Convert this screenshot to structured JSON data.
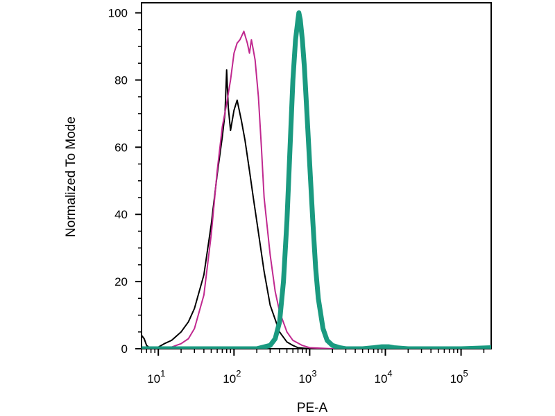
{
  "chart_data": {
    "type": "line",
    "title": "",
    "xlabel": "PE-A",
    "ylabel": "Normalized To Mode",
    "x_scale": "log",
    "xlim": [
      6,
      250000
    ],
    "ylim": [
      0,
      103
    ],
    "grid": false,
    "x_ticks": [
      {
        "value": 10,
        "base": "10",
        "exp": "1"
      },
      {
        "value": 100,
        "base": "10",
        "exp": "2"
      },
      {
        "value": 1000,
        "base": "10",
        "exp": "3"
      },
      {
        "value": 10000,
        "base": "10",
        "exp": "4"
      },
      {
        "value": 100000,
        "base": "10",
        "exp": "5"
      }
    ],
    "y_ticks": [
      {
        "value": 0,
        "label": "0"
      },
      {
        "value": 20,
        "label": "20"
      },
      {
        "value": 40,
        "label": "40"
      },
      {
        "value": 60,
        "label": "60"
      },
      {
        "value": 80,
        "label": "80"
      },
      {
        "value": 100,
        "label": "100"
      }
    ],
    "series": [
      {
        "color": "#000000",
        "width": 2,
        "x": [
          6,
          6.5,
          7,
          8,
          9,
          10,
          12,
          15,
          20,
          25,
          30,
          40,
          50,
          60,
          70,
          76,
          80,
          84,
          90,
          100,
          110,
          125,
          140,
          160,
          180,
          200,
          250,
          300,
          400,
          500,
          600,
          700,
          1000,
          2000,
          5000,
          10000,
          20000,
          50000,
          100000,
          250000
        ],
        "y": [
          4,
          3,
          1,
          0,
          0,
          0.5,
          1.5,
          2.5,
          5,
          8,
          12,
          22,
          37,
          52,
          63,
          70,
          83,
          72,
          65,
          71,
          74,
          68,
          62,
          53,
          45,
          38,
          23,
          13,
          5,
          2,
          1,
          0.3,
          0,
          0,
          0,
          0,
          0,
          0,
          0,
          0
        ]
      },
      {
        "color": "#c0288f",
        "width": 2,
        "x": [
          6,
          10,
          15,
          20,
          25,
          30,
          40,
          50,
          60,
          70,
          80,
          90,
          100,
          110,
          120,
          135,
          150,
          160,
          170,
          180,
          190,
          210,
          230,
          250,
          300,
          350,
          400,
          500,
          600,
          800,
          1000,
          2000,
          5000,
          10000,
          100000,
          250000
        ],
        "y": [
          0,
          0,
          0.5,
          1.5,
          3,
          6,
          16,
          34,
          53,
          66,
          73,
          80,
          88,
          91,
          92,
          94.5,
          91,
          88,
          92,
          89,
          86,
          75,
          60,
          45,
          28,
          17,
          11,
          5,
          2.5,
          1,
          0.3,
          0,
          0,
          0,
          0,
          0
        ]
      },
      {
        "color": "#1a9a80",
        "width": 7,
        "x": [
          6,
          100,
          200,
          300,
          350,
          400,
          450,
          500,
          550,
          600,
          650,
          700,
          720,
          750,
          800,
          850,
          900,
          1000,
          1100,
          1200,
          1300,
          1500,
          1700,
          2000,
          2500,
          3000,
          5000,
          7000,
          9000,
          11000,
          13000,
          20000,
          50000,
          100000,
          250000
        ],
        "y": [
          0,
          0,
          0,
          1,
          3,
          8,
          20,
          38,
          60,
          80,
          92,
          98,
          100,
          98,
          92,
          84,
          74,
          55,
          38,
          24,
          15,
          6,
          2.5,
          1,
          0.3,
          0,
          0,
          0.3,
          0.6,
          0.6,
          0.3,
          0,
          0,
          0,
          0.3
        ]
      }
    ]
  }
}
